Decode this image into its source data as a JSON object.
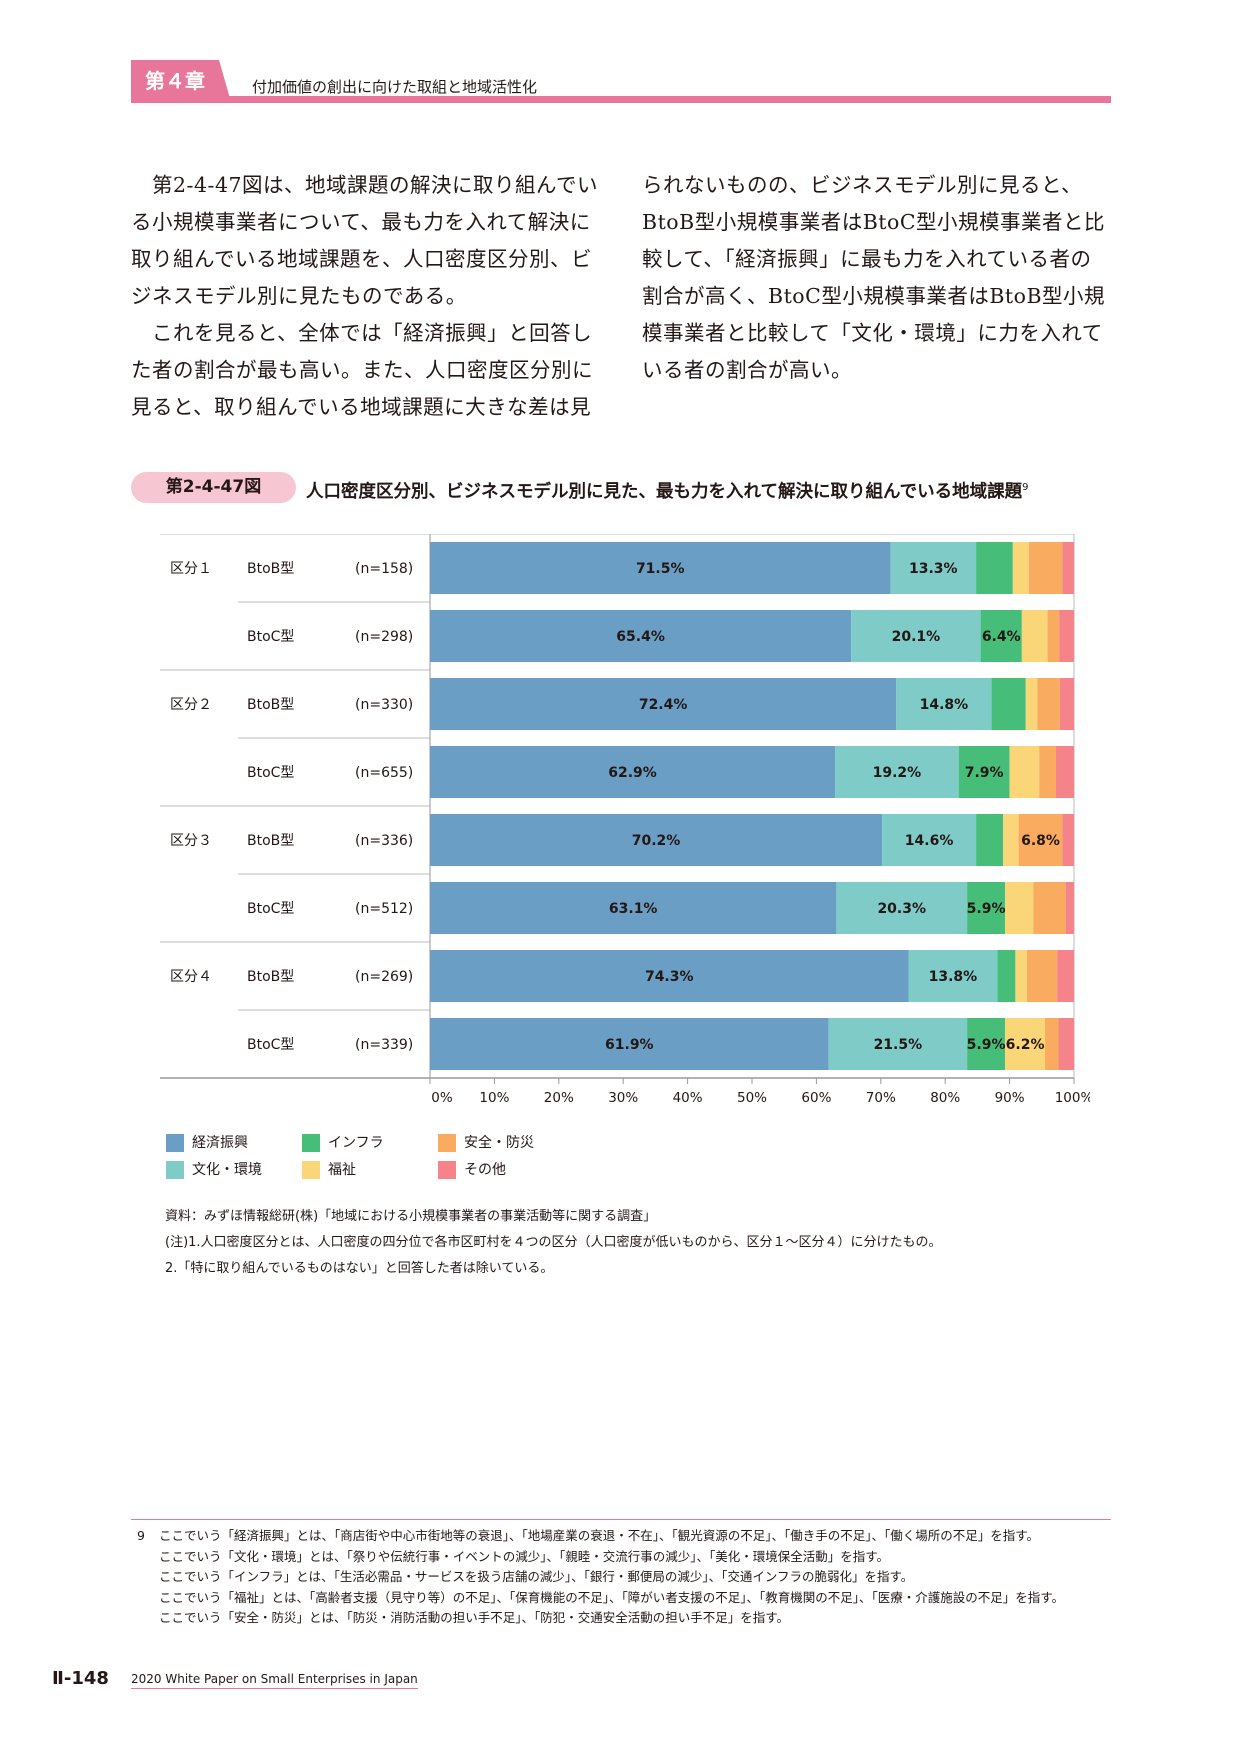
{
  "header": {
    "chapter": "第４章",
    "chapter_title": "付加価値の創出に向けた取組と地域活性化"
  },
  "body": {
    "col1_p1": "第2-4-47図は、地域課題の解決に取り組んでいる小規模事業者について、最も力を入れて解決に取り組んでいる地域課題を、人口密度区分別、ビジネスモデル別に見たものである。",
    "col1_p2": "これを見ると、全体では「経済振興」と回答した者の割合が最も高い。また、人口密度区分別に見ると、取り組んでいる地域課題に大きな差は見",
    "col2_p1": "られないものの、ビジネスモデル別に見ると、BtoB型小規模事業者はBtoC型小規模事業者と比較して、「経済振興」に最も力を入れている者の割合が高く、BtoC型小規模事業者はBtoB型小規模事業者と比較して「文化・環境」に力を入れている者の割合が高い。"
  },
  "figure": {
    "label": "第2-4-47図",
    "title": "人口密度区分別、ビジネスモデル別に見た、最も力を入れて解決に取り組んでいる地域課題",
    "title_footnote_ref": "9"
  },
  "chart_data": {
    "type": "bar",
    "orientation": "horizontal-stacked-100",
    "categories": [
      {
        "group": "区分１",
        "model": "BtoB型",
        "n": "(n=158)"
      },
      {
        "group": "",
        "model": "BtoC型",
        "n": "(n=298)"
      },
      {
        "group": "区分２",
        "model": "BtoB型",
        "n": "(n=330)"
      },
      {
        "group": "",
        "model": "BtoC型",
        "n": "(n=655)"
      },
      {
        "group": "区分３",
        "model": "BtoB型",
        "n": "(n=336)"
      },
      {
        "group": "",
        "model": "BtoC型",
        "n": "(n=512)"
      },
      {
        "group": "区分４",
        "model": "BtoB型",
        "n": "(n=269)"
      },
      {
        "group": "",
        "model": "BtoC型",
        "n": "(n=339)"
      }
    ],
    "series": [
      {
        "name": "経済振興",
        "color": "#6a9ec5",
        "values": [
          71.5,
          65.4,
          72.4,
          62.9,
          70.2,
          63.1,
          74.3,
          61.9
        ],
        "labels": [
          "71.5%",
          "65.4%",
          "72.4%",
          "62.9%",
          "70.2%",
          "63.1%",
          "74.3%",
          "61.9%"
        ]
      },
      {
        "name": "文化・環境",
        "color": "#7ecbc8",
        "values": [
          13.3,
          20.1,
          14.8,
          19.2,
          14.6,
          20.3,
          13.8,
          21.5
        ],
        "labels": [
          "13.3%",
          "20.1%",
          "14.8%",
          "19.2%",
          "14.6%",
          "20.3%",
          "13.8%",
          "21.5%"
        ]
      },
      {
        "name": "インフラ",
        "color": "#47bd7a",
        "values": [
          5.7,
          6.4,
          5.3,
          7.9,
          4.2,
          5.9,
          2.8,
          5.9
        ],
        "labels": [
          "",
          "6.4%",
          "",
          "7.9%",
          "",
          "5.9%",
          "",
          "5.9%"
        ]
      },
      {
        "name": "福祉",
        "color": "#fbd679",
        "values": [
          2.5,
          4.0,
          1.8,
          4.6,
          2.4,
          4.4,
          1.8,
          6.2
        ],
        "labels": [
          "",
          "",
          "",
          "",
          "",
          "",
          "",
          "6.2%"
        ]
      },
      {
        "name": "安全・防災",
        "color": "#f9ac5f",
        "values": [
          5.2,
          1.8,
          3.5,
          2.6,
          6.8,
          5.0,
          4.7,
          2.1
        ],
        "labels": [
          "",
          "",
          "",
          "",
          "6.8%",
          "",
          "",
          ""
        ]
      },
      {
        "name": "その他",
        "color": "#f4838a",
        "values": [
          1.8,
          2.3,
          2.2,
          2.8,
          1.8,
          1.3,
          2.6,
          2.4
        ],
        "labels": [
          "",
          "",
          "",
          "",
          "",
          "",
          "",
          ""
        ]
      }
    ],
    "x_ticks": [
      "0%",
      "10%",
      "20%",
      "30%",
      "40%",
      "50%",
      "60%",
      "70%",
      "80%",
      "90%",
      "100%"
    ],
    "xlim": [
      0,
      100
    ],
    "legend_position": "bottom-left"
  },
  "legend": [
    {
      "label": "経済振興",
      "color": "#6a9ec5"
    },
    {
      "label": "インフラ",
      "color": "#47bd7a"
    },
    {
      "label": "安全・防災",
      "color": "#f9ac5f"
    },
    {
      "label": "文化・環境",
      "color": "#7ecbc8"
    },
    {
      "label": "福祉",
      "color": "#fbd679"
    },
    {
      "label": "その他",
      "color": "#f4838a"
    }
  ],
  "notes": {
    "source": "資料：みずほ情報総研(株)「地域における小規模事業者の事業活動等に関する調査」",
    "note1": "(注)1.人口密度区分とは、人口密度の四分位で各市区町村を４つの区分（人口密度が低いものから、区分１〜区分４）に分けたもの。",
    "note2": "2.「特に取り組んでいるものはない」と回答した者は除いている。"
  },
  "footnote": {
    "number": "9",
    "lines": [
      "ここでいう「経済振興」とは、「商店街や中心市街地等の衰退」、「地場産業の衰退・不在」、「観光資源の不足」、「働き手の不足」、「働く場所の不足」を指す。",
      "ここでいう「文化・環境」とは、「祭りや伝統行事・イベントの減少」、「親睦・交流行事の減少」、「美化・環境保全活動」を指す。",
      "ここでいう「インフラ」とは、「生活必需品・サービスを扱う店舗の減少」、「銀行・郵便局の減少」、「交通インフラの脆弱化」を指す。",
      "ここでいう「福祉」とは、「高齢者支援（見守り等）の不足」、「保育機能の不足」、「障がい者支援の不足」、「教育機関の不足」、「医療・介護施設の不足」を指す。",
      "ここでいう「安全・防災」とは、「防災・消防活動の担い手不足」、「防犯・交通安全活動の担い手不足」を指す。"
    ]
  },
  "footer": {
    "page_number": "Ⅱ-148",
    "publication": "2020 White Paper on Small Enterprises in Japan"
  }
}
